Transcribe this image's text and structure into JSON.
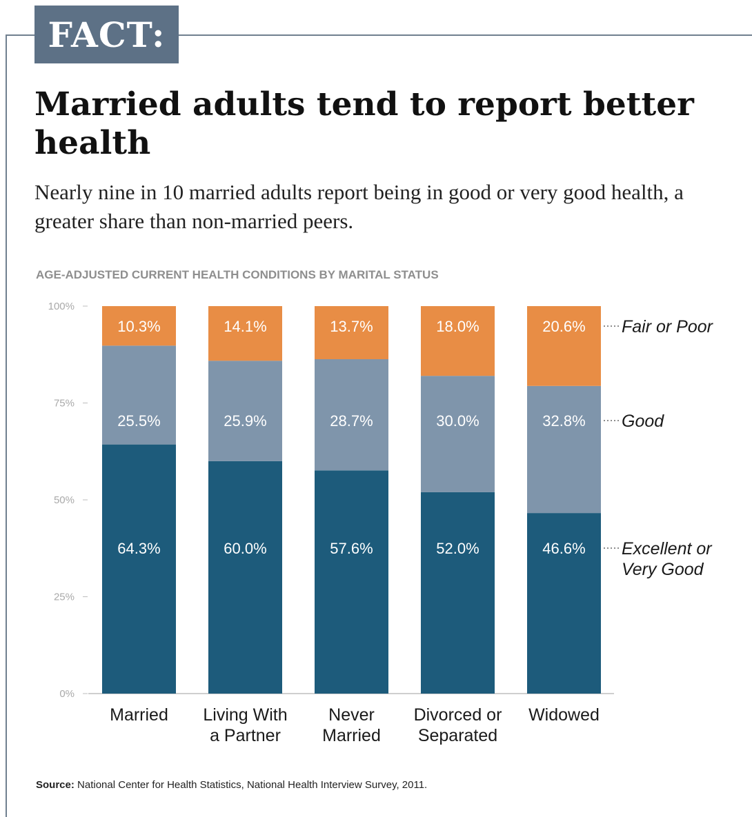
{
  "header": {
    "badge": "FACT:",
    "title": "Married adults tend to report better health",
    "subtitle": "Nearly nine in 10 married adults report being in good or very good health, a greater share than non-married peers."
  },
  "source": {
    "label": "Source:",
    "text": "National Center for Health Statistics, National Health Interview Survey, 2011."
  },
  "colors": {
    "fair_or_poor": "#e88d45",
    "good": "#7f95ab",
    "excellent": "#1d5b7b"
  },
  "chart_data": {
    "type": "bar",
    "stacked": true,
    "title": "AGE-ADJUSTED CURRENT HEALTH CONDITIONS BY MARITAL STATUS",
    "categories": [
      [
        "Married"
      ],
      [
        "Living With",
        "a Partner"
      ],
      [
        "Never",
        "Married"
      ],
      [
        "Divorced or",
        "Separated"
      ],
      [
        "Widowed"
      ]
    ],
    "series": [
      {
        "name": "Excellent or Very Good",
        "label_lines": [
          "Excellent or",
          "Very Good"
        ],
        "color": "#1d5b7b",
        "values": [
          64.3,
          60.0,
          57.6,
          52.0,
          46.6
        ],
        "labels": [
          "64.3%",
          "60.0%",
          "57.6%",
          "52.0%",
          "46.6%"
        ]
      },
      {
        "name": "Good",
        "label_lines": [
          "Good"
        ],
        "color": "#7f95ab",
        "values": [
          25.5,
          25.9,
          28.7,
          30.0,
          32.8
        ],
        "labels": [
          "25.5%",
          "25.9%",
          "28.7%",
          "30.0%",
          "32.8%"
        ]
      },
      {
        "name": "Fair or Poor",
        "label_lines": [
          "Fair or Poor"
        ],
        "color": "#e88d45",
        "values": [
          10.3,
          14.1,
          13.7,
          18.0,
          20.6
        ],
        "labels": [
          "10.3%",
          "14.1%",
          "13.7%",
          "18.0%",
          "20.6%"
        ]
      }
    ],
    "yticks": [
      0,
      25,
      50,
      75,
      100
    ],
    "ytick_labels": [
      "0%",
      "25%",
      "50%",
      "75%",
      "100%"
    ],
    "ylim": [
      0,
      100
    ],
    "xlabel": "",
    "ylabel": "",
    "grid": false,
    "legend": "right, inline labels beside last bar"
  }
}
